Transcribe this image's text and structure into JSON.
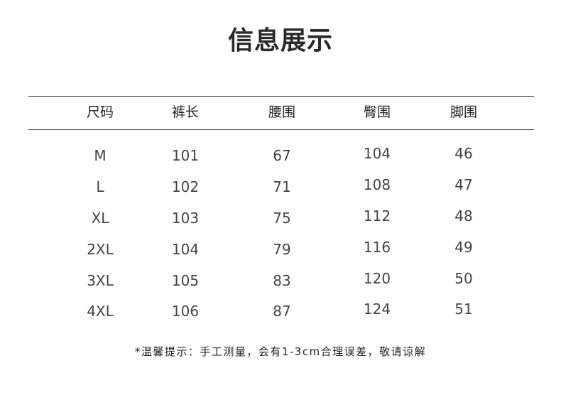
{
  "title": "信息展示",
  "table": {
    "headers": [
      "尺码",
      "裤长",
      "腰围",
      "臀围",
      "脚围"
    ],
    "rows": [
      [
        "M",
        "101",
        "67",
        "104",
        "46"
      ],
      [
        "L",
        "102",
        "71",
        "108",
        "47"
      ],
      [
        "XL",
        "103",
        "75",
        "112",
        "48"
      ],
      [
        "2XL",
        "104",
        "79",
        "116",
        "49"
      ],
      [
        "3XL",
        "105",
        "83",
        "120",
        "50"
      ],
      [
        "4XL",
        "106",
        "87",
        "124",
        "51"
      ]
    ]
  },
  "note": "*温馨提示：手工测量，会有1-3cm合理误差，敬请谅解"
}
